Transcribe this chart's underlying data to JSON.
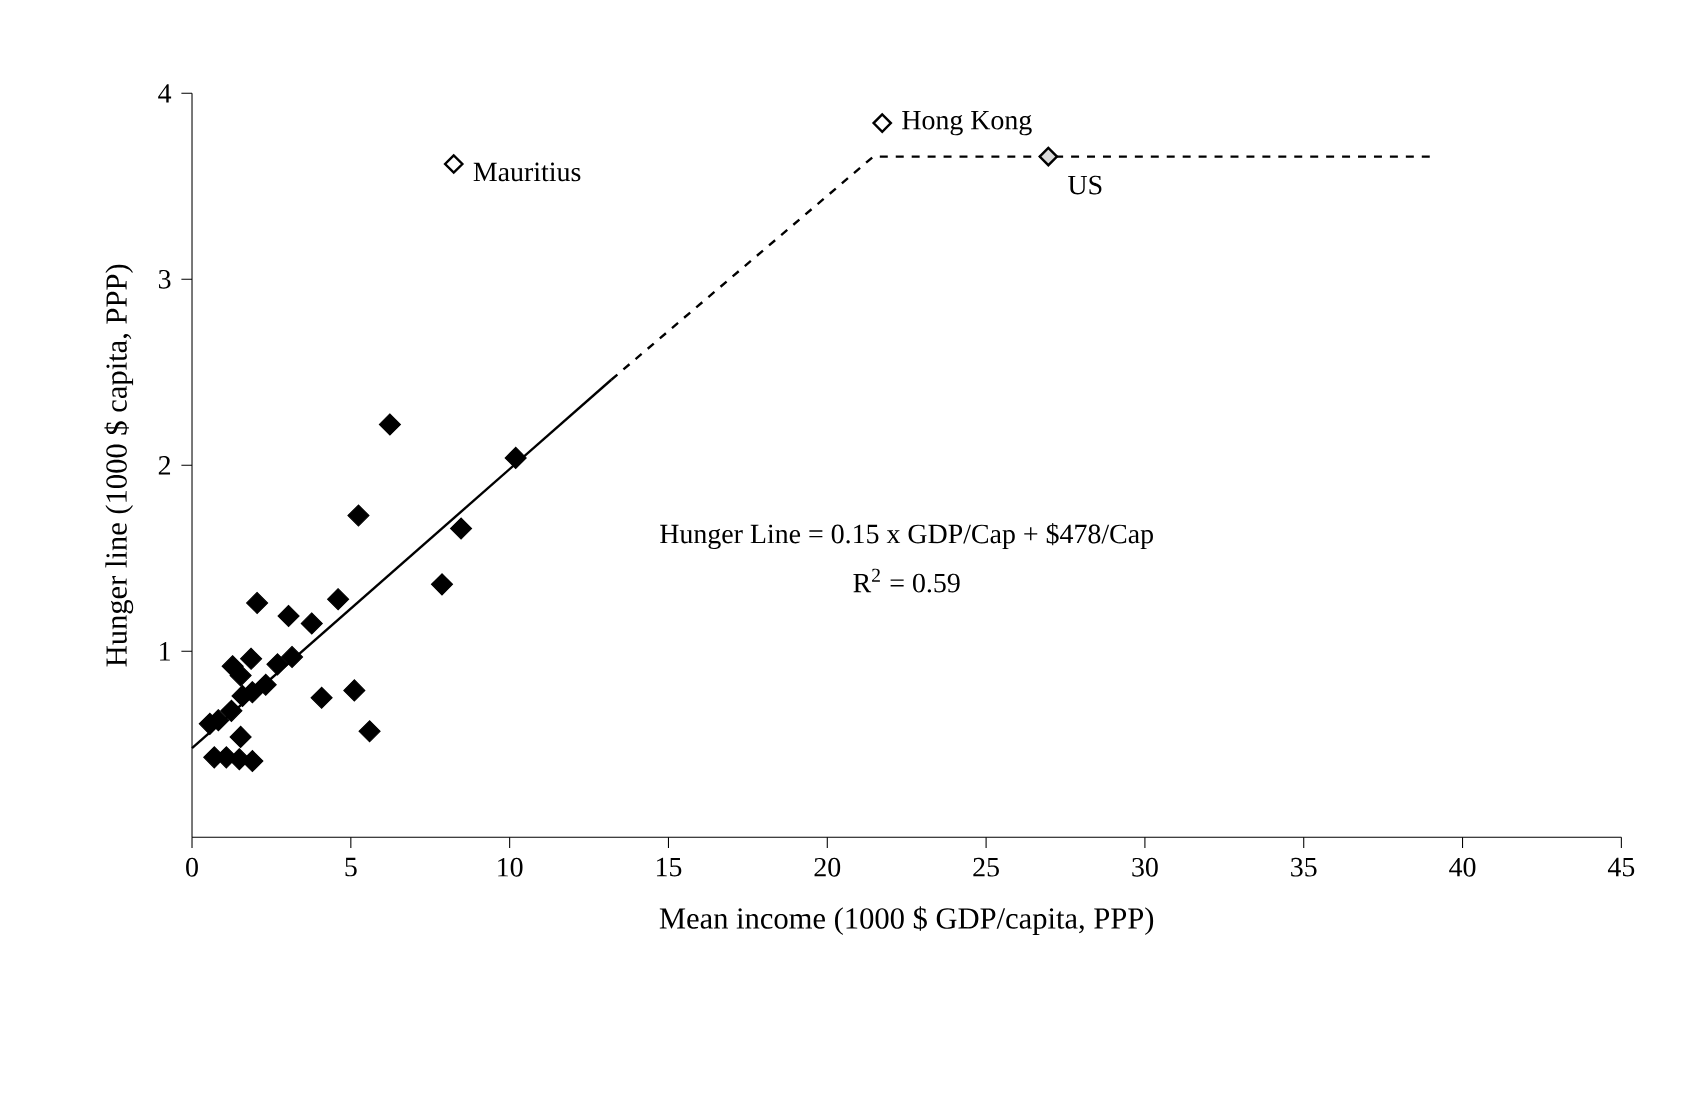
{
  "chart_data": {
    "type": "scatter",
    "xlabel": "Mean income (1000 $ GDP/capita, PPP)",
    "ylabel": "Hunger line (1000 $ capita, PPP)",
    "xlim": [
      0,
      45
    ],
    "ylim": [
      0,
      4
    ],
    "xticks": [
      0,
      5,
      10,
      15,
      20,
      25,
      30,
      35,
      40,
      45
    ],
    "yticks": [
      1,
      2,
      3,
      4
    ],
    "series": [
      {
        "marker": "diamond",
        "color": "#000000",
        "x": [
          6.23,
          10.19,
          5.24,
          8.47,
          7.87,
          4.6,
          2.05,
          3.04,
          3.77,
          3.15,
          2.69,
          1.28,
          1.86,
          1.53,
          2.32,
          1.9,
          1.59,
          4.08,
          5.11,
          5.59,
          1.24,
          0.83,
          1.53,
          0.7,
          1.08,
          1.49,
          1.9,
          0.56
        ],
        "values": [
          2.22,
          2.04,
          1.73,
          1.66,
          1.36,
          1.28,
          1.26,
          1.19,
          1.15,
          0.97,
          0.93,
          0.92,
          0.96,
          0.87,
          0.82,
          0.78,
          0.76,
          0.75,
          0.79,
          0.57,
          0.68,
          0.63,
          0.54,
          0.43,
          0.43,
          0.42,
          0.41,
          0.61
        ]
      },
      {
        "marker": "diamond",
        "colors": [
          "#ffffff",
          "#ffffff",
          "#d9d9d9"
        ],
        "x": [
          8.24,
          21.73,
          26.96
        ],
        "values": [
          3.62,
          3.84,
          3.66
        ]
      },
      {
        "type": "line",
        "marker": "none",
        "line_style": "solid",
        "color": "#000000",
        "x": [
          0,
          13.2
        ],
        "values": [
          0.48,
          2.46
        ]
      },
      {
        "type": "line",
        "marker": "none",
        "line_style": "dashed",
        "color": "#000000",
        "x": [
          13.2,
          21.45,
          39.0
        ],
        "values": [
          2.46,
          3.66,
          3.66
        ]
      }
    ],
    "annotations": [
      {
        "text": "Mauritius",
        "x": 8.24,
        "y": 3.62
      },
      {
        "text": "Hong Kong",
        "x": 21.73,
        "y": 3.84
      },
      {
        "text": "US",
        "x": 26.96,
        "y": 3.66
      },
      "Hunger Line = 0.15 x GDP/Cap + $478/Cap",
      "R$^{2}$ = 0.59"
    ]
  }
}
